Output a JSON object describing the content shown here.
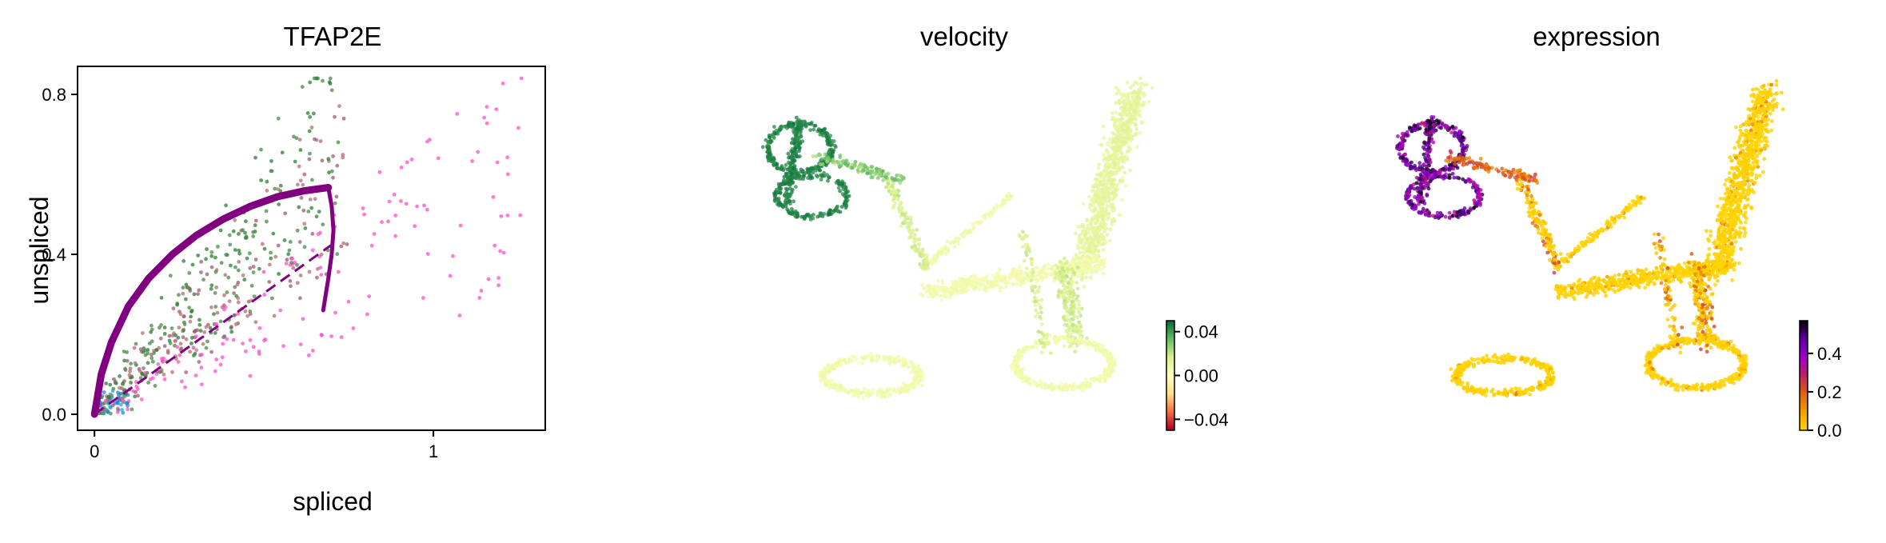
{
  "chart_data": [
    {
      "type": "scatter",
      "title": "TFAP2E",
      "xlabel": "spliced",
      "ylabel": "unspliced",
      "xlim": [
        -0.05,
        1.33
      ],
      "ylim": [
        -0.04,
        0.87
      ],
      "x_ticks": [
        {
          "v": 0,
          "label": "0"
        },
        {
          "v": 1,
          "label": "1"
        }
      ],
      "y_ticks": [
        {
          "v": 0.0,
          "label": "0.0"
        },
        {
          "v": 0.4,
          "label": "0.4"
        },
        {
          "v": 0.8,
          "label": "0.8"
        }
      ],
      "grid": false,
      "point_colors": [
        "#2e7d32",
        "#b07070",
        "#ff4fc8",
        "#9e5a7a",
        "#4a8a4a",
        "#2a7fe0",
        "#20b0c0"
      ],
      "fit_curve_color": "#800080",
      "fit_curve": {
        "induction": [
          [
            0,
            0
          ],
          [
            0.02,
            0.1
          ],
          [
            0.05,
            0.18
          ],
          [
            0.1,
            0.27
          ],
          [
            0.16,
            0.34
          ],
          [
            0.23,
            0.4
          ],
          [
            0.3,
            0.447
          ],
          [
            0.38,
            0.488
          ],
          [
            0.46,
            0.52
          ],
          [
            0.54,
            0.544
          ],
          [
            0.62,
            0.559
          ],
          [
            0.69,
            0.567
          ]
        ],
        "repression": [
          [
            0.69,
            0.567
          ],
          [
            0.7,
            0.52
          ],
          [
            0.705,
            0.46
          ],
          [
            0.7,
            0.4
          ],
          [
            0.69,
            0.34
          ],
          [
            0.675,
            0.26
          ]
        ],
        "steady_state_line": [
          [
            0,
            0
          ],
          [
            0.71,
            0.43
          ]
        ]
      }
    },
    {
      "type": "scatter",
      "title": "velocity",
      "colorbar": {
        "ticks": [
          {
            "v": 0.04,
            "label": "0.04"
          },
          {
            "v": 0.0,
            "label": "0.00"
          },
          {
            "v": -0.04,
            "label": "−0.04"
          }
        ],
        "range": [
          -0.05,
          0.05
        ],
        "colormap": [
          "#a50026",
          "#f46d43",
          "#fee08b",
          "#ffffbf",
          "#d9ef8b",
          "#66bd63",
          "#006837"
        ]
      }
    },
    {
      "type": "scatter",
      "title": "expression",
      "colorbar": {
        "ticks": [
          {
            "v": 0.4,
            "label": "0.4"
          },
          {
            "v": 0.2,
            "label": "0.2"
          },
          {
            "v": 0.0,
            "label": "0.0"
          }
        ],
        "range": [
          0.0,
          0.57
        ],
        "colormap": [
          "#ffd700",
          "#f0a000",
          "#e06010",
          "#c02060",
          "#a000d0",
          "#5a00a0",
          "#000000"
        ]
      }
    }
  ]
}
